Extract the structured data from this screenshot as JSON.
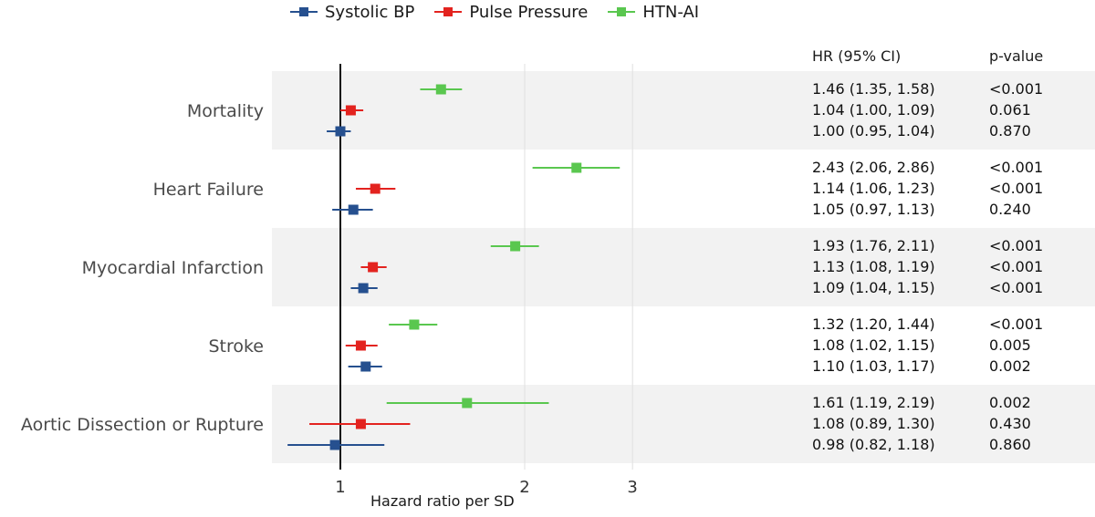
{
  "chart_data": {
    "type": "forest",
    "title": "",
    "xlabel": "Hazard ratio per SD",
    "x_scale": "log",
    "xlim": [
      0.8,
      4.0
    ],
    "x_ticks": [
      1,
      2,
      3
    ],
    "reference_line": 1,
    "legend": [
      "Systolic BP",
      "Pulse Pressure",
      "HTN-AI"
    ],
    "table_headers": [
      "HR (95% CI)",
      "p-value"
    ],
    "colors": {
      "Systolic BP": "#26508f",
      "Pulse Pressure": "#e3231f",
      "HTN-AI": "#5ac74f",
      "band": "#f2f2f2",
      "grid": "#e0e0e0"
    },
    "categories": [
      "Mortality",
      "Heart Failure",
      "Myocardial Infarction",
      "Stroke",
      "Aortic Dissection or Rupture"
    ],
    "rows": [
      {
        "category": "Mortality",
        "series": "HTN-AI",
        "hr": 1.46,
        "lo": 1.35,
        "hi": 1.58,
        "hr_text": "1.46 (1.35, 1.58)",
        "p": "<0.001"
      },
      {
        "category": "Mortality",
        "series": "Pulse Pressure",
        "hr": 1.04,
        "lo": 1.0,
        "hi": 1.09,
        "hr_text": "1.04 (1.00, 1.09)",
        "p": "0.061"
      },
      {
        "category": "Mortality",
        "series": "Systolic BP",
        "hr": 1.0,
        "lo": 0.95,
        "hi": 1.04,
        "hr_text": "1.00 (0.95, 1.04)",
        "p": "0.870"
      },
      {
        "category": "Heart Failure",
        "series": "HTN-AI",
        "hr": 2.43,
        "lo": 2.06,
        "hi": 2.86,
        "hr_text": "2.43 (2.06, 2.86)",
        "p": "<0.001"
      },
      {
        "category": "Heart Failure",
        "series": "Pulse Pressure",
        "hr": 1.14,
        "lo": 1.06,
        "hi": 1.23,
        "hr_text": "1.14 (1.06, 1.23)",
        "p": "<0.001"
      },
      {
        "category": "Heart Failure",
        "series": "Systolic BP",
        "hr": 1.05,
        "lo": 0.97,
        "hi": 1.13,
        "hr_text": "1.05 (0.97, 1.13)",
        "p": "0.240"
      },
      {
        "category": "Myocardial Infarction",
        "series": "HTN-AI",
        "hr": 1.93,
        "lo": 1.76,
        "hi": 2.11,
        "hr_text": "1.93 (1.76, 2.11)",
        "p": "<0.001"
      },
      {
        "category": "Myocardial Infarction",
        "series": "Pulse Pressure",
        "hr": 1.13,
        "lo": 1.08,
        "hi": 1.19,
        "hr_text": "1.13 (1.08, 1.19)",
        "p": "<0.001"
      },
      {
        "category": "Myocardial Infarction",
        "series": "Systolic BP",
        "hr": 1.09,
        "lo": 1.04,
        "hi": 1.15,
        "hr_text": "1.09 (1.04, 1.15)",
        "p": "<0.001"
      },
      {
        "category": "Stroke",
        "series": "HTN-AI",
        "hr": 1.32,
        "lo": 1.2,
        "hi": 1.44,
        "hr_text": "1.32 (1.20, 1.44)",
        "p": "<0.001"
      },
      {
        "category": "Stroke",
        "series": "Pulse Pressure",
        "hr": 1.08,
        "lo": 1.02,
        "hi": 1.15,
        "hr_text": "1.08 (1.02, 1.15)",
        "p": "0.005"
      },
      {
        "category": "Stroke",
        "series": "Systolic BP",
        "hr": 1.1,
        "lo": 1.03,
        "hi": 1.17,
        "hr_text": "1.10 (1.03, 1.17)",
        "p": "0.002"
      },
      {
        "category": "Aortic Dissection or Rupture",
        "series": "HTN-AI",
        "hr": 1.61,
        "lo": 1.19,
        "hi": 2.19,
        "hr_text": "1.61 (1.19, 2.19)",
        "p": "0.002"
      },
      {
        "category": "Aortic Dissection or Rupture",
        "series": "Pulse Pressure",
        "hr": 1.08,
        "lo": 0.89,
        "hi": 1.3,
        "hr_text": "1.08 (0.89, 1.30)",
        "p": "0.430"
      },
      {
        "category": "Aortic Dissection or Rupture",
        "series": "Systolic BP",
        "hr": 0.98,
        "lo": 0.82,
        "hi": 1.18,
        "hr_text": "0.98 (0.82, 1.18)",
        "p": "0.860"
      }
    ]
  }
}
